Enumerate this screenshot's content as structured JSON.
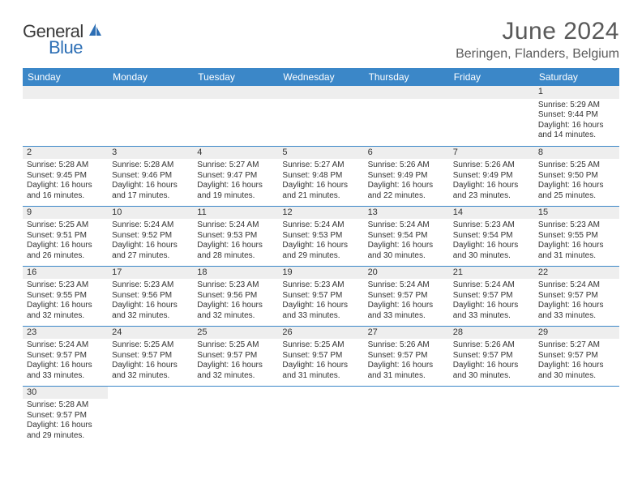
{
  "logo": {
    "word1": "General",
    "word2": "Blue"
  },
  "title": "June 2024",
  "location": "Beringen, Flanders, Belgium",
  "colors": {
    "header_bg": "#3b87c8",
    "header_text": "#ffffff",
    "daynum_bg": "#eeeeee",
    "cell_border": "#3b87c8",
    "title_color": "#595959",
    "logo_dark": "#3a3a3a",
    "logo_blue": "#2d6fb5"
  },
  "weekdays": [
    "Sunday",
    "Monday",
    "Tuesday",
    "Wednesday",
    "Thursday",
    "Friday",
    "Saturday"
  ],
  "weeks": [
    [
      null,
      null,
      null,
      null,
      null,
      null,
      {
        "n": "1",
        "sr": "5:29 AM",
        "ss": "9:44 PM",
        "dl": "16 hours and 14 minutes."
      }
    ],
    [
      {
        "n": "2",
        "sr": "5:28 AM",
        "ss": "9:45 PM",
        "dl": "16 hours and 16 minutes."
      },
      {
        "n": "3",
        "sr": "5:28 AM",
        "ss": "9:46 PM",
        "dl": "16 hours and 17 minutes."
      },
      {
        "n": "4",
        "sr": "5:27 AM",
        "ss": "9:47 PM",
        "dl": "16 hours and 19 minutes."
      },
      {
        "n": "5",
        "sr": "5:27 AM",
        "ss": "9:48 PM",
        "dl": "16 hours and 21 minutes."
      },
      {
        "n": "6",
        "sr": "5:26 AM",
        "ss": "9:49 PM",
        "dl": "16 hours and 22 minutes."
      },
      {
        "n": "7",
        "sr": "5:26 AM",
        "ss": "9:49 PM",
        "dl": "16 hours and 23 minutes."
      },
      {
        "n": "8",
        "sr": "5:25 AM",
        "ss": "9:50 PM",
        "dl": "16 hours and 25 minutes."
      }
    ],
    [
      {
        "n": "9",
        "sr": "5:25 AM",
        "ss": "9:51 PM",
        "dl": "16 hours and 26 minutes."
      },
      {
        "n": "10",
        "sr": "5:24 AM",
        "ss": "9:52 PM",
        "dl": "16 hours and 27 minutes."
      },
      {
        "n": "11",
        "sr": "5:24 AM",
        "ss": "9:53 PM",
        "dl": "16 hours and 28 minutes."
      },
      {
        "n": "12",
        "sr": "5:24 AM",
        "ss": "9:53 PM",
        "dl": "16 hours and 29 minutes."
      },
      {
        "n": "13",
        "sr": "5:24 AM",
        "ss": "9:54 PM",
        "dl": "16 hours and 30 minutes."
      },
      {
        "n": "14",
        "sr": "5:23 AM",
        "ss": "9:54 PM",
        "dl": "16 hours and 30 minutes."
      },
      {
        "n": "15",
        "sr": "5:23 AM",
        "ss": "9:55 PM",
        "dl": "16 hours and 31 minutes."
      }
    ],
    [
      {
        "n": "16",
        "sr": "5:23 AM",
        "ss": "9:55 PM",
        "dl": "16 hours and 32 minutes."
      },
      {
        "n": "17",
        "sr": "5:23 AM",
        "ss": "9:56 PM",
        "dl": "16 hours and 32 minutes."
      },
      {
        "n": "18",
        "sr": "5:23 AM",
        "ss": "9:56 PM",
        "dl": "16 hours and 32 minutes."
      },
      {
        "n": "19",
        "sr": "5:23 AM",
        "ss": "9:57 PM",
        "dl": "16 hours and 33 minutes."
      },
      {
        "n": "20",
        "sr": "5:24 AM",
        "ss": "9:57 PM",
        "dl": "16 hours and 33 minutes."
      },
      {
        "n": "21",
        "sr": "5:24 AM",
        "ss": "9:57 PM",
        "dl": "16 hours and 33 minutes."
      },
      {
        "n": "22",
        "sr": "5:24 AM",
        "ss": "9:57 PM",
        "dl": "16 hours and 33 minutes."
      }
    ],
    [
      {
        "n": "23",
        "sr": "5:24 AM",
        "ss": "9:57 PM",
        "dl": "16 hours and 33 minutes."
      },
      {
        "n": "24",
        "sr": "5:25 AM",
        "ss": "9:57 PM",
        "dl": "16 hours and 32 minutes."
      },
      {
        "n": "25",
        "sr": "5:25 AM",
        "ss": "9:57 PM",
        "dl": "16 hours and 32 minutes."
      },
      {
        "n": "26",
        "sr": "5:25 AM",
        "ss": "9:57 PM",
        "dl": "16 hours and 31 minutes."
      },
      {
        "n": "27",
        "sr": "5:26 AM",
        "ss": "9:57 PM",
        "dl": "16 hours and 31 minutes."
      },
      {
        "n": "28",
        "sr": "5:26 AM",
        "ss": "9:57 PM",
        "dl": "16 hours and 30 minutes."
      },
      {
        "n": "29",
        "sr": "5:27 AM",
        "ss": "9:57 PM",
        "dl": "16 hours and 30 minutes."
      }
    ],
    [
      {
        "n": "30",
        "sr": "5:28 AM",
        "ss": "9:57 PM",
        "dl": "16 hours and 29 minutes."
      },
      null,
      null,
      null,
      null,
      null,
      null
    ]
  ],
  "labels": {
    "sunrise": "Sunrise: ",
    "sunset": "Sunset: ",
    "daylight": "Daylight: "
  }
}
